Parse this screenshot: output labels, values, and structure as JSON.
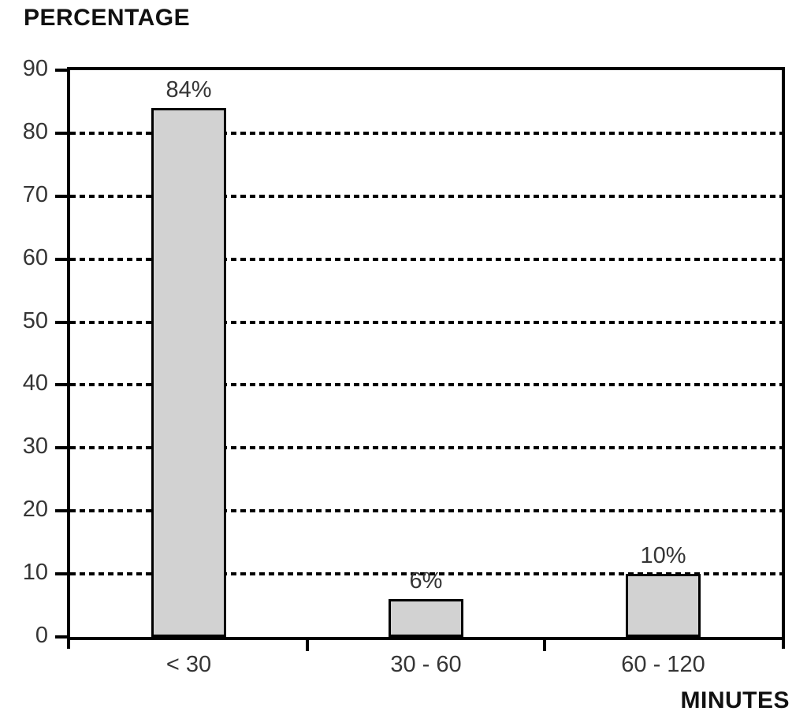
{
  "chart_data": {
    "type": "bar",
    "title": "",
    "ylabel": "PERCENTAGE",
    "xlabel": "MINUTES",
    "categories": [
      "< 30",
      "30 - 60",
      "60 - 120"
    ],
    "values": [
      84,
      6,
      10
    ],
    "bar_labels": [
      "84%",
      "6%",
      "10%"
    ],
    "y_ticks": [
      0,
      10,
      20,
      30,
      40,
      50,
      60,
      70,
      80,
      90
    ],
    "ylim": [
      0,
      90
    ],
    "grid": "horizontal dashed lines at every 10 from 10 to 80, solid border at 90",
    "legend": "none",
    "colors": {
      "bar_fill": "#d2d2d2",
      "bar_border": "#000000",
      "axis": "#000000",
      "title_text": "#111111",
      "tick_text": "#353535",
      "background": "#ffffff"
    }
  }
}
